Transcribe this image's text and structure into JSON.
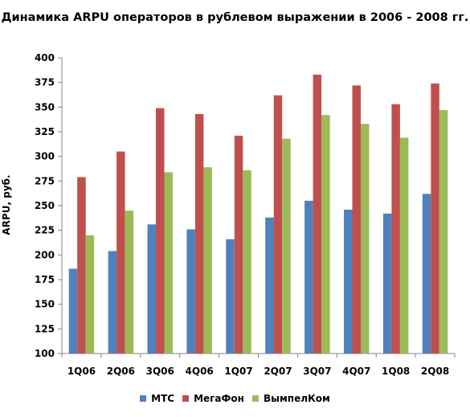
{
  "chart_data": {
    "type": "bar",
    "title": "Динамика ARPU операторов в рублевом выражении в 2006 - 2008 гг.",
    "xlabel": "",
    "ylabel": "ARPU, руб.",
    "ylim": [
      100,
      400
    ],
    "yticks": [
      100,
      125,
      150,
      175,
      200,
      225,
      250,
      275,
      300,
      325,
      350,
      375,
      400
    ],
    "grid": false,
    "legend_position": "bottom",
    "categories": [
      "1Q06",
      "2Q06",
      "3Q06",
      "4Q06",
      "1Q07",
      "2Q07",
      "3Q07",
      "4Q07",
      "1Q08",
      "2Q08"
    ],
    "series": [
      {
        "name": "МТС",
        "color": "#4f81bd",
        "values": [
          186,
          204,
          231,
          226,
          216,
          238,
          255,
          246,
          242,
          262
        ]
      },
      {
        "name": "МегаФон",
        "color": "#c0504d",
        "values": [
          279,
          305,
          349,
          343,
          321,
          362,
          383,
          372,
          353,
          374
        ]
      },
      {
        "name": "ВымпелКом",
        "color": "#9bbb59",
        "values": [
          220,
          245,
          284,
          289,
          286,
          318,
          342,
          333,
          319,
          347
        ]
      }
    ]
  }
}
